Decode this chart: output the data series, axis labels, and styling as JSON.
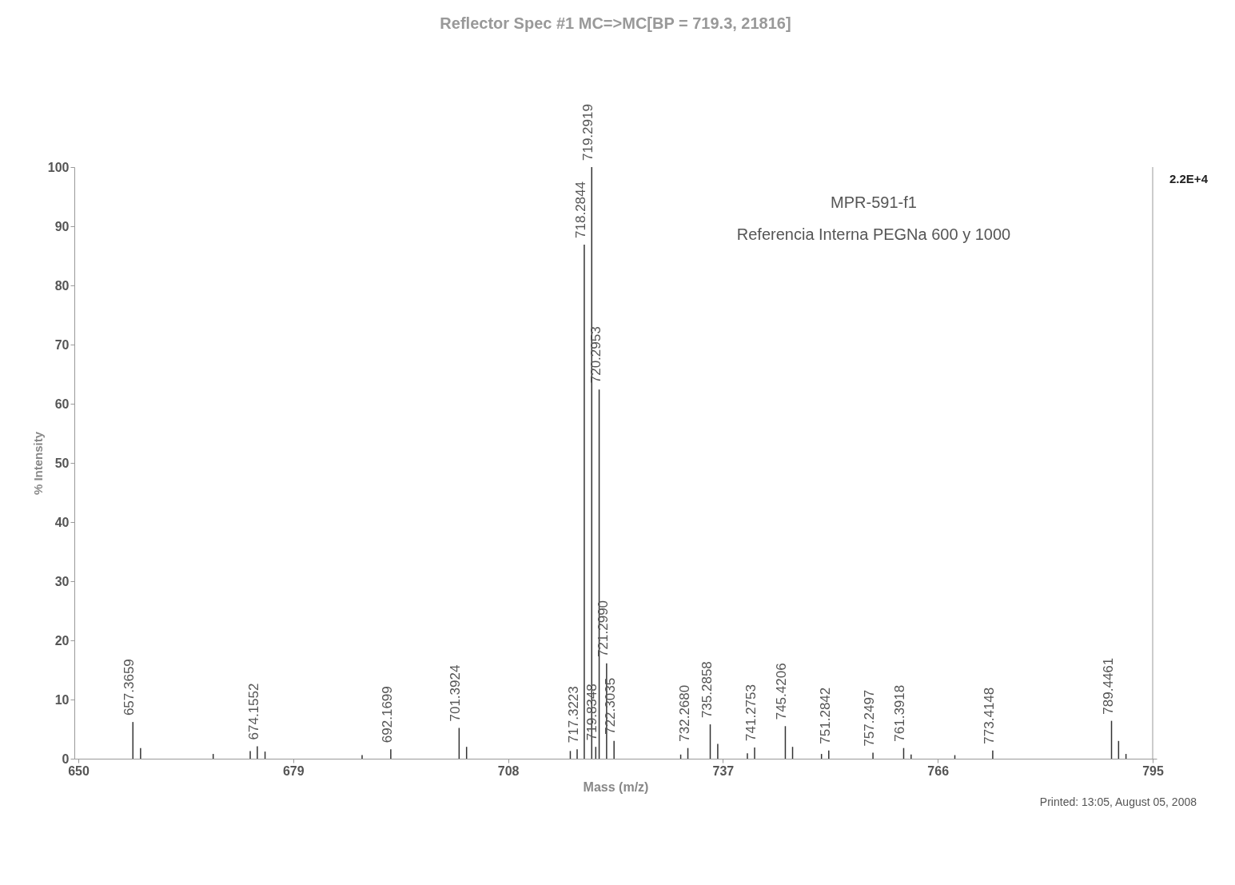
{
  "chart_data": {
    "type": "bar",
    "title": "Reflector Spec #1 MC=>MC[BP = 719.3, 21816]",
    "xlabel": "Mass (m/z)",
    "ylabel": "% Intensity",
    "color": "#333333",
    "x": [
      657.3659,
      658.4,
      668.2,
      673.2,
      674.1552,
      675.2,
      688.3,
      692.1699,
      701.3924,
      702.4,
      716.4,
      717.3223,
      718.2844,
      719.2919,
      719.8348,
      720.2953,
      721.299,
      722.3035,
      731.3,
      732.268,
      735.2858,
      736.3,
      740.3,
      741.2753,
      745.4206,
      746.4,
      750.3,
      751.2842,
      757.2497,
      761.3918,
      762.4,
      768.3,
      773.4148,
      789.4461,
      790.4,
      791.4
    ],
    "values": [
      6.2,
      1.8,
      0.8,
      1.3,
      2.1,
      1.2,
      0.6,
      1.6,
      5.2,
      2.0,
      1.3,
      1.6,
      86.9,
      100,
      2.0,
      62.4,
      16.1,
      3.0,
      0.7,
      1.8,
      5.8,
      2.5,
      0.9,
      1.9,
      5.5,
      2.0,
      0.8,
      1.4,
      1.0,
      1.8,
      0.7,
      0.6,
      1.4,
      6.4,
      3.0,
      0.8
    ],
    "xlim": [
      650,
      795
    ],
    "xticks": [
      650,
      679,
      708,
      737,
      766,
      795
    ],
    "ylim": [
      0,
      100
    ],
    "yticks": [
      0,
      10,
      20,
      30,
      40,
      50,
      60,
      70,
      80,
      90,
      100
    ],
    "grid": false,
    "annotations": [
      {
        "text": "657.3659",
        "x": 657.3659,
        "y": 6.2
      },
      {
        "text": "674.1552",
        "x": 674.1552,
        "y": 2.1
      },
      {
        "text": "692.1699",
        "x": 692.1699,
        "y": 1.6
      },
      {
        "text": "701.3924",
        "x": 701.3924,
        "y": 5.2
      },
      {
        "text": "717.3223",
        "x": 717.3223,
        "y": 1.6
      },
      {
        "text": "718.2844",
        "x": 718.2844,
        "y": 86.9
      },
      {
        "text": "719.2919",
        "x": 719.2919,
        "y": 100
      },
      {
        "text": "719.8348",
        "x": 719.8348,
        "y": 2.0
      },
      {
        "text": "720.2953",
        "x": 720.2953,
        "y": 62.4
      },
      {
        "text": "721.2990",
        "x": 721.299,
        "y": 16.1
      },
      {
        "text": "722.3035",
        "x": 722.3035,
        "y": 3.0
      },
      {
        "text": "732.2680",
        "x": 732.268,
        "y": 1.8
      },
      {
        "text": "735.2858",
        "x": 735.2858,
        "y": 5.8
      },
      {
        "text": "741.2753",
        "x": 741.2753,
        "y": 1.9
      },
      {
        "text": "745.4206",
        "x": 745.4206,
        "y": 5.5
      },
      {
        "text": "751.2842",
        "x": 751.2842,
        "y": 1.4
      },
      {
        "text": "757.2497",
        "x": 757.2497,
        "y": 1.0
      },
      {
        "text": "761.3918",
        "x": 761.3918,
        "y": 1.8
      },
      {
        "text": "773.4148",
        "x": 773.4148,
        "y": 1.4
      },
      {
        "text": "789.4461",
        "x": 789.4461,
        "y": 6.4
      },
      "MPR-591-f1",
      "Referencia Interna PEGNa 600 y 1000",
      "2.2E+4",
      "Printed: 13:05, August 05, 2008"
    ]
  }
}
